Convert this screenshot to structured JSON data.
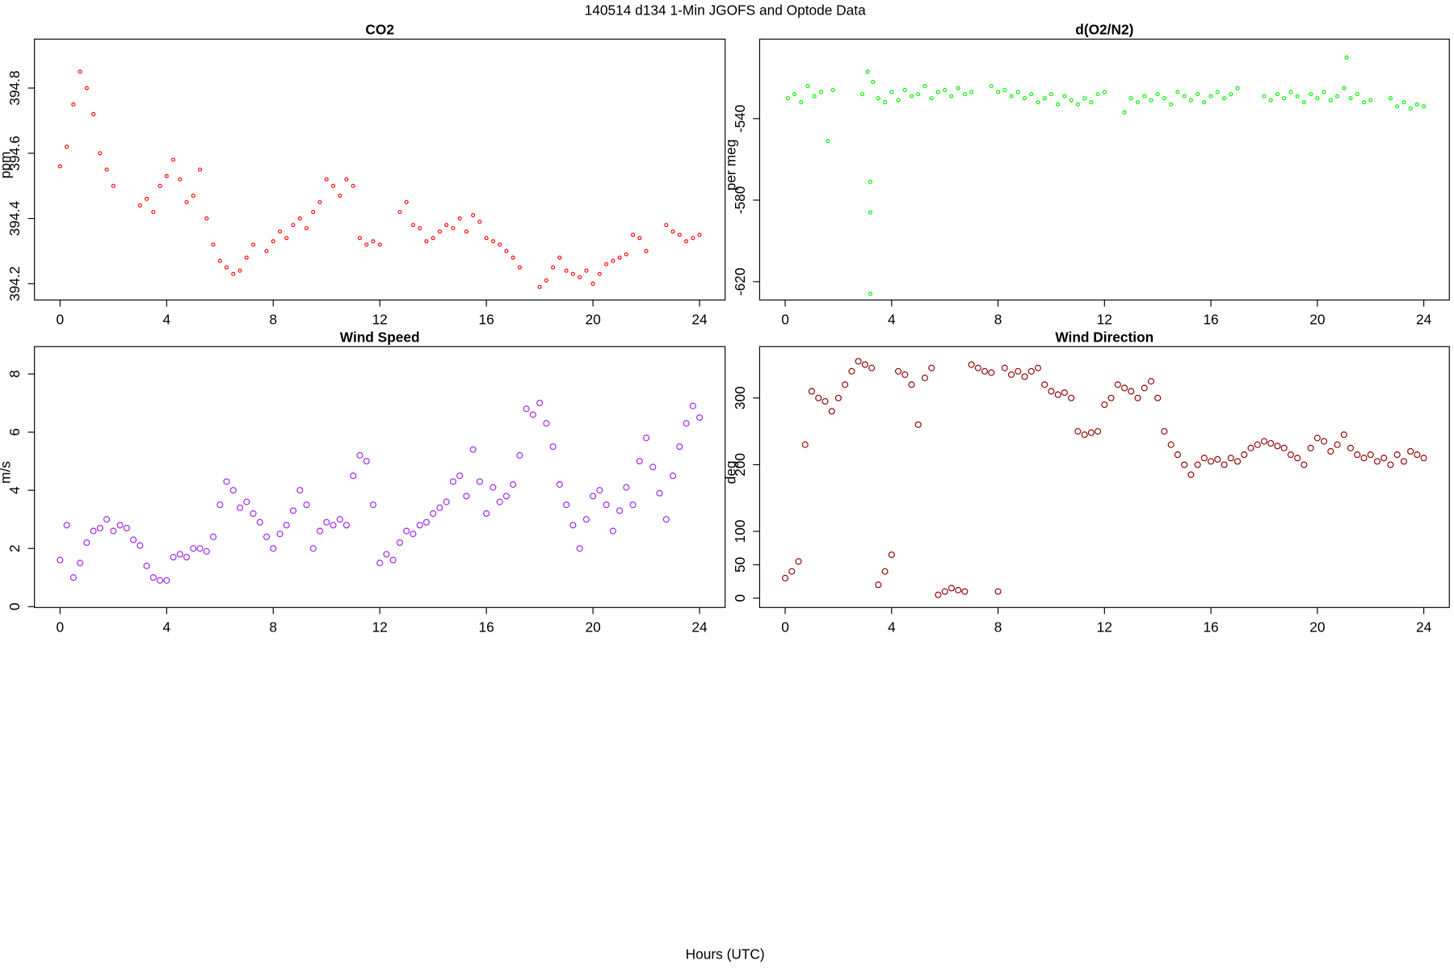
{
  "title": "140514   d134   1-Min  JGOFS and Optode Data",
  "xlabel": "Hours (UTC)",
  "chart_data": [
    {
      "type": "scatter",
      "title": "CO2",
      "y_label": "ppm",
      "color": "#ff0000",
      "xlim": [
        -0.96,
        24.96
      ],
      "xticks": [
        0,
        4,
        8,
        12,
        16,
        20,
        24
      ],
      "ylim": [
        394.15,
        394.95
      ],
      "yticks": [
        394.2,
        394.4,
        394.6,
        394.8
      ],
      "x": [
        0,
        0.25,
        0.5,
        0.75,
        1,
        1.25,
        1.5,
        1.75,
        2,
        3,
        3.25,
        3.5,
        3.75,
        4,
        4.25,
        4.5,
        4.75,
        5,
        5.25,
        5.5,
        5.75,
        6,
        6.25,
        6.5,
        6.75,
        7,
        7.25,
        7.75,
        8,
        8.25,
        8.5,
        8.75,
        9,
        9.25,
        9.5,
        9.75,
        10,
        10.25,
        10.5,
        10.75,
        11,
        11.25,
        11.5,
        11.75,
        12,
        12.75,
        13,
        13.25,
        13.5,
        13.75,
        14,
        14.25,
        14.5,
        14.75,
        15,
        15.25,
        15.5,
        15.75,
        16,
        16.25,
        16.5,
        16.75,
        17,
        17.25,
        18,
        18.25,
        18.5,
        18.75,
        19,
        19.25,
        19.5,
        19.75,
        20,
        20.25,
        20.5,
        20.75,
        21,
        21.25,
        21.5,
        21.75,
        22,
        22.75,
        23,
        23.25,
        23.5,
        23.75,
        24
      ],
      "values": [
        394.56,
        394.62,
        394.75,
        394.85,
        394.8,
        394.72,
        394.6,
        394.55,
        394.5,
        394.44,
        394.46,
        394.42,
        394.5,
        394.53,
        394.58,
        394.52,
        394.45,
        394.47,
        394.55,
        394.4,
        394.32,
        394.27,
        394.25,
        394.23,
        394.24,
        394.28,
        394.32,
        394.3,
        394.33,
        394.36,
        394.34,
        394.38,
        394.4,
        394.37,
        394.42,
        394.45,
        394.52,
        394.5,
        394.47,
        394.52,
        394.5,
        394.34,
        394.32,
        394.33,
        394.32,
        394.42,
        394.45,
        394.38,
        394.37,
        394.33,
        394.34,
        394.36,
        394.38,
        394.37,
        394.4,
        394.36,
        394.41,
        394.39,
        394.34,
        394.33,
        394.32,
        394.3,
        394.28,
        394.25,
        394.19,
        394.21,
        394.25,
        394.28,
        394.24,
        394.23,
        394.22,
        394.24,
        394.2,
        394.23,
        394.26,
        394.27,
        394.28,
        394.29,
        394.35,
        394.34,
        394.3,
        394.38,
        394.36,
        394.35,
        394.33,
        394.34,
        394.35
      ]
    },
    {
      "type": "scatter",
      "title": "d(O2/N2)",
      "y_label": "per meg",
      "color": "#00ee00",
      "xlim": [
        -0.96,
        24.96
      ],
      "xticks": [
        0,
        4,
        8,
        12,
        16,
        20,
        24
      ],
      "ylim": [
        -629,
        -501
      ],
      "yticks": [
        -620,
        -580,
        -540
      ],
      "x": [
        0.1,
        0.35,
        0.6,
        0.85,
        1.1,
        1.35,
        1.6,
        1.8,
        2.9,
        3.1,
        3.2,
        3.2,
        3.2,
        3.3,
        3.5,
        3.75,
        4,
        4.25,
        4.5,
        4.75,
        5,
        5.25,
        5.5,
        5.75,
        6,
        6.25,
        6.5,
        6.75,
        7,
        7.75,
        8,
        8.25,
        8.5,
        8.75,
        9,
        9.25,
        9.5,
        9.75,
        10,
        10.25,
        10.5,
        10.75,
        11,
        11.25,
        11.5,
        11.75,
        12,
        12.75,
        13,
        13.25,
        13.5,
        13.75,
        14,
        14.25,
        14.5,
        14.75,
        15,
        15.25,
        15.5,
        15.75,
        16,
        16.25,
        16.5,
        16.75,
        17,
        18,
        18.25,
        18.5,
        18.75,
        19,
        19.25,
        19.5,
        19.75,
        20,
        20.25,
        20.5,
        20.75,
        21,
        21.1,
        21.25,
        21.5,
        21.75,
        22,
        22.75,
        23,
        23.25,
        23.5,
        23.75,
        24
      ],
      "values": [
        -530,
        -528,
        -532,
        -524,
        -529,
        -527,
        -551,
        -526,
        -528,
        -517,
        -571,
        -586,
        -626,
        -522,
        -530,
        -532,
        -527,
        -531,
        -526,
        -529,
        -528,
        -524,
        -530,
        -527,
        -526,
        -529,
        -525,
        -528,
        -527,
        -524,
        -527,
        -526,
        -529,
        -527,
        -530,
        -528,
        -532,
        -530,
        -528,
        -533,
        -529,
        -531,
        -533,
        -530,
        -532,
        -528,
        -527,
        -537,
        -530,
        -532,
        -529,
        -531,
        -528,
        -530,
        -533,
        -527,
        -529,
        -531,
        -528,
        -532,
        -529,
        -527,
        -530,
        -528,
        -525,
        -529,
        -531,
        -528,
        -530,
        -527,
        -529,
        -532,
        -528,
        -530,
        -527,
        -531,
        -529,
        -525,
        -510,
        -530,
        -528,
        -532,
        -531,
        -530,
        -534,
        -532,
        -535,
        -533,
        -534
      ]
    },
    {
      "type": "scatter",
      "title": "Wind Speed",
      "y_label": "m/s",
      "color": "#a020f0",
      "xlim": [
        -0.96,
        24.96
      ],
      "xticks": [
        0,
        4,
        8,
        12,
        16,
        20,
        24
      ],
      "ylim": [
        -0.03,
        8.94
      ],
      "yticks": [
        0,
        2,
        4,
        6,
        8
      ],
      "x": [
        0,
        0.25,
        0.5,
        0.75,
        1,
        1.25,
        1.5,
        1.75,
        2,
        2.25,
        2.5,
        2.75,
        3,
        3.25,
        3.5,
        3.75,
        4,
        4.25,
        4.5,
        4.75,
        5,
        5.25,
        5.5,
        5.75,
        6,
        6.25,
        6.5,
        6.75,
        7,
        7.25,
        7.5,
        7.75,
        8,
        8.25,
        8.5,
        8.75,
        9,
        9.25,
        9.5,
        9.75,
        10,
        10.25,
        10.5,
        10.75,
        11,
        11.25,
        11.5,
        11.75,
        12,
        12.25,
        12.5,
        12.75,
        13,
        13.25,
        13.5,
        13.75,
        14,
        14.25,
        14.5,
        14.75,
        15,
        15.25,
        15.5,
        15.75,
        16,
        16.25,
        16.5,
        16.75,
        17,
        17.25,
        17.5,
        17.75,
        18,
        18.25,
        18.5,
        18.75,
        19,
        19.25,
        19.5,
        19.75,
        20,
        20.25,
        20.5,
        20.75,
        21,
        21.25,
        21.5,
        21.75,
        22,
        22.25,
        22.5,
        22.75,
        23,
        23.25,
        23.5,
        23.75,
        24
      ],
      "values": [
        1.6,
        2.8,
        1.0,
        1.5,
        2.2,
        2.6,
        2.7,
        3.0,
        2.6,
        2.8,
        2.7,
        2.3,
        2.1,
        1.4,
        1.0,
        0.9,
        0.9,
        1.7,
        1.8,
        1.7,
        2.0,
        2.0,
        1.9,
        2.4,
        3.5,
        4.3,
        4.0,
        3.4,
        3.6,
        3.2,
        2.9,
        2.4,
        2.0,
        2.5,
        2.8,
        3.3,
        4.0,
        3.5,
        2.0,
        2.6,
        2.9,
        2.8,
        3.0,
        2.8,
        4.5,
        5.2,
        5.0,
        3.5,
        1.5,
        1.8,
        1.6,
        2.2,
        2.6,
        2.5,
        2.8,
        2.9,
        3.2,
        3.4,
        3.6,
        4.3,
        4.5,
        3.8,
        5.4,
        4.3,
        3.2,
        4.1,
        3.6,
        3.8,
        4.2,
        5.2,
        6.8,
        6.6,
        7.0,
        6.3,
        5.5,
        4.2,
        3.5,
        2.8,
        2.0,
        3.0,
        3.8,
        4.0,
        3.5,
        2.6,
        3.3,
        4.1,
        3.5,
        5.0,
        5.8,
        4.8,
        3.9,
        3.0,
        4.5,
        5.5,
        6.3,
        6.9,
        6.5
      ]
    },
    {
      "type": "scatter",
      "title": "Wind Direction",
      "y_label": "deg",
      "color": "#8b0000",
      "xlim": [
        -0.96,
        24.96
      ],
      "xticks": [
        0,
        4,
        8,
        12,
        16,
        20,
        24
      ],
      "ylim": [
        -14,
        377
      ],
      "yticks": [
        0,
        50,
        100,
        200,
        300
      ],
      "x": [
        0,
        0.25,
        0.5,
        0.75,
        1,
        1.25,
        1.5,
        1.75,
        2,
        2.25,
        2.5,
        2.75,
        3,
        3.25,
        3.5,
        3.75,
        4,
        4.25,
        4.5,
        4.75,
        5,
        5.25,
        5.5,
        5.75,
        6,
        6.25,
        6.5,
        6.75,
        7,
        7.25,
        7.5,
        7.75,
        8,
        8.25,
        8.5,
        8.75,
        9,
        9.25,
        9.5,
        9.75,
        10,
        10.25,
        10.5,
        10.75,
        11,
        11.25,
        11.5,
        11.75,
        12,
        12.25,
        12.5,
        12.75,
        13,
        13.25,
        13.5,
        13.75,
        14,
        14.25,
        14.5,
        14.75,
        15,
        15.25,
        15.5,
        15.75,
        16,
        16.25,
        16.5,
        16.75,
        17,
        17.25,
        17.5,
        17.75,
        18,
        18.25,
        18.5,
        18.75,
        19,
        19.25,
        19.5,
        19.75,
        20,
        20.25,
        20.5,
        20.75,
        21,
        21.25,
        21.5,
        21.75,
        22,
        22.25,
        22.5,
        22.75,
        23,
        23.25,
        23.5,
        23.75,
        24
      ],
      "values": [
        30,
        40,
        55,
        230,
        310,
        300,
        295,
        280,
        300,
        320,
        340,
        355,
        350,
        345,
        20,
        40,
        65,
        340,
        335,
        320,
        260,
        330,
        345,
        5,
        10,
        15,
        12,
        10,
        350,
        345,
        340,
        338,
        10,
        345,
        335,
        340,
        332,
        340,
        345,
        320,
        310,
        305,
        308,
        300,
        250,
        245,
        248,
        250,
        290,
        300,
        320,
        315,
        310,
        300,
        315,
        325,
        300,
        250,
        230,
        215,
        200,
        185,
        200,
        210,
        205,
        208,
        200,
        210,
        205,
        215,
        225,
        230,
        235,
        232,
        228,
        225,
        215,
        210,
        200,
        225,
        240,
        235,
        220,
        230,
        245,
        225,
        215,
        210,
        215,
        205,
        210,
        200,
        215,
        205,
        220,
        215,
        210
      ]
    }
  ]
}
